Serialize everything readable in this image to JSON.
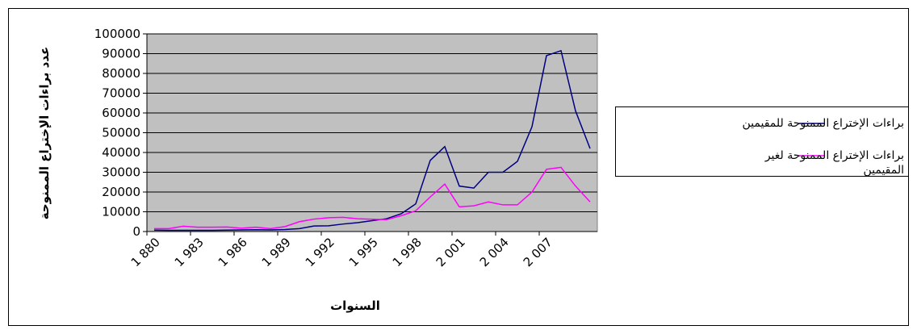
{
  "chart_data": {
    "type": "line",
    "categories": [
      "1 880",
      null,
      null,
      "1 983",
      null,
      null,
      "1 986",
      null,
      null,
      "1 989",
      null,
      null,
      "1 992",
      null,
      null,
      "1 995",
      null,
      null,
      "1 998",
      null,
      null,
      "2 001",
      null,
      null,
      "2 004",
      null,
      null,
      "2 007",
      null,
      null,
      null
    ],
    "series": [
      {
        "name": "براءات الإختراع الممنوحة للمقيمين",
        "color": "#000080",
        "values": [
          700,
          600,
          600,
          600,
          600,
          700,
          800,
          900,
          800,
          1000,
          1500,
          2800,
          2900,
          3800,
          4500,
          5500,
          6500,
          9000,
          14000,
          36000,
          43000,
          23000,
          22000,
          30000,
          30000,
          35500,
          53000,
          89000,
          91500,
          61000,
          42000
        ]
      },
      {
        "name": "براءات الإختراع الممنوحة لغير المقيمين",
        "color": "#ff00ff",
        "values": [
          1500,
          1500,
          2700,
          2200,
          2200,
          2300,
          1700,
          2200,
          1500,
          2500,
          5000,
          6300,
          7000,
          7200,
          6500,
          6200,
          6000,
          8000,
          10500,
          17500,
          24000,
          12500,
          13000,
          15000,
          13500,
          13500,
          20000,
          31500,
          32500,
          23000,
          15000
        ]
      }
    ],
    "xlabel": "السنوات",
    "ylabel": "عدد براءات الإختراع الممنوحة",
    "ylim": [
      0,
      100000
    ],
    "yticks": [
      0,
      10000,
      20000,
      30000,
      40000,
      50000,
      60000,
      70000,
      80000,
      90000,
      100000
    ],
    "grid": true,
    "legend": "right",
    "background": "#c0c0c0"
  }
}
